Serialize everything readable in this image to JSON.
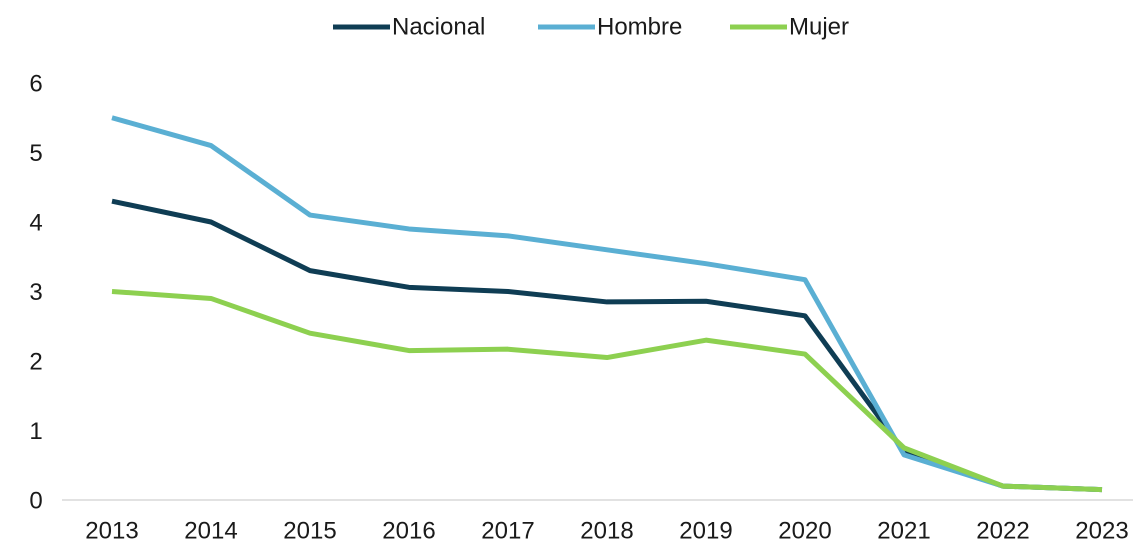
{
  "chart_data": {
    "type": "line",
    "categories": [
      "2013",
      "2014",
      "2015",
      "2016",
      "2017",
      "2018",
      "2019",
      "2020",
      "2021",
      "2022",
      "2023"
    ],
    "series": [
      {
        "name": "Nacional",
        "color": "#0f3d54",
        "values": [
          4.3,
          4.0,
          3.3,
          3.06,
          3.0,
          2.85,
          2.86,
          2.65,
          0.7,
          0.2,
          0.15
        ]
      },
      {
        "name": "Hombre",
        "color": "#5aafd3",
        "values": [
          5.5,
          5.1,
          4.1,
          3.9,
          3.8,
          3.6,
          3.4,
          3.17,
          0.65,
          0.2,
          0.15
        ]
      },
      {
        "name": "Mujer",
        "color": "#8dd050",
        "values": [
          3.0,
          2.9,
          2.4,
          2.15,
          2.17,
          2.05,
          2.3,
          2.1,
          0.75,
          0.2,
          0.15
        ]
      }
    ],
    "ylim": [
      0,
      6
    ],
    "yticks": [
      0,
      1,
      2,
      3,
      4,
      5,
      6
    ],
    "grid": false,
    "legend": "top"
  }
}
